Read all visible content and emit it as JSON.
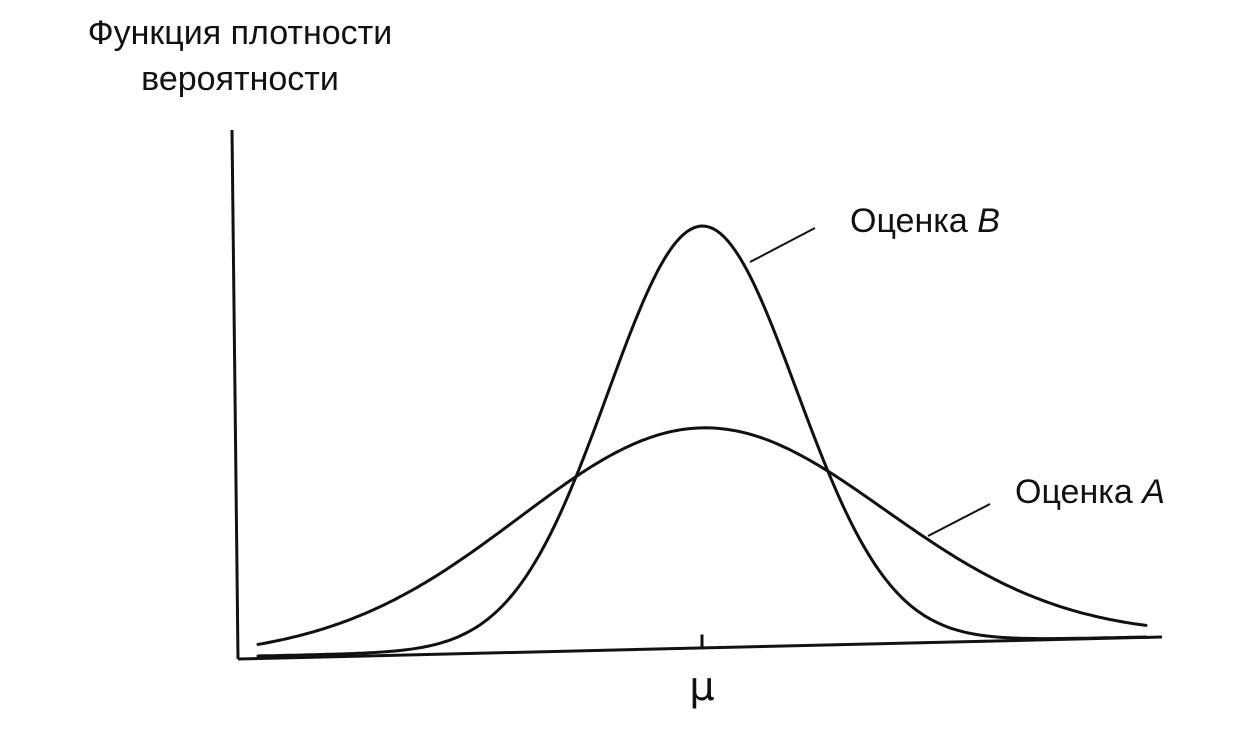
{
  "chart_data": {
    "type": "line",
    "title": "",
    "ylabel_lines": [
      "Функция плотности",
      "вероятности"
    ],
    "xlabel": "",
    "x_ticks": [
      {
        "value": 0,
        "label": "μ"
      }
    ],
    "xlim": [
      -4,
      4
    ],
    "ylim": [
      0,
      1.05
    ],
    "grid": false,
    "legend": "none",
    "series": [
      {
        "name_prefix": "Оценка ",
        "name_letter": "B",
        "mean": 0,
        "sigma": 0.85,
        "peak": 1.0
      },
      {
        "name_prefix": "Оценка ",
        "name_letter": "A",
        "mean": 0,
        "sigma": 1.65,
        "peak": 0.52
      }
    ]
  }
}
